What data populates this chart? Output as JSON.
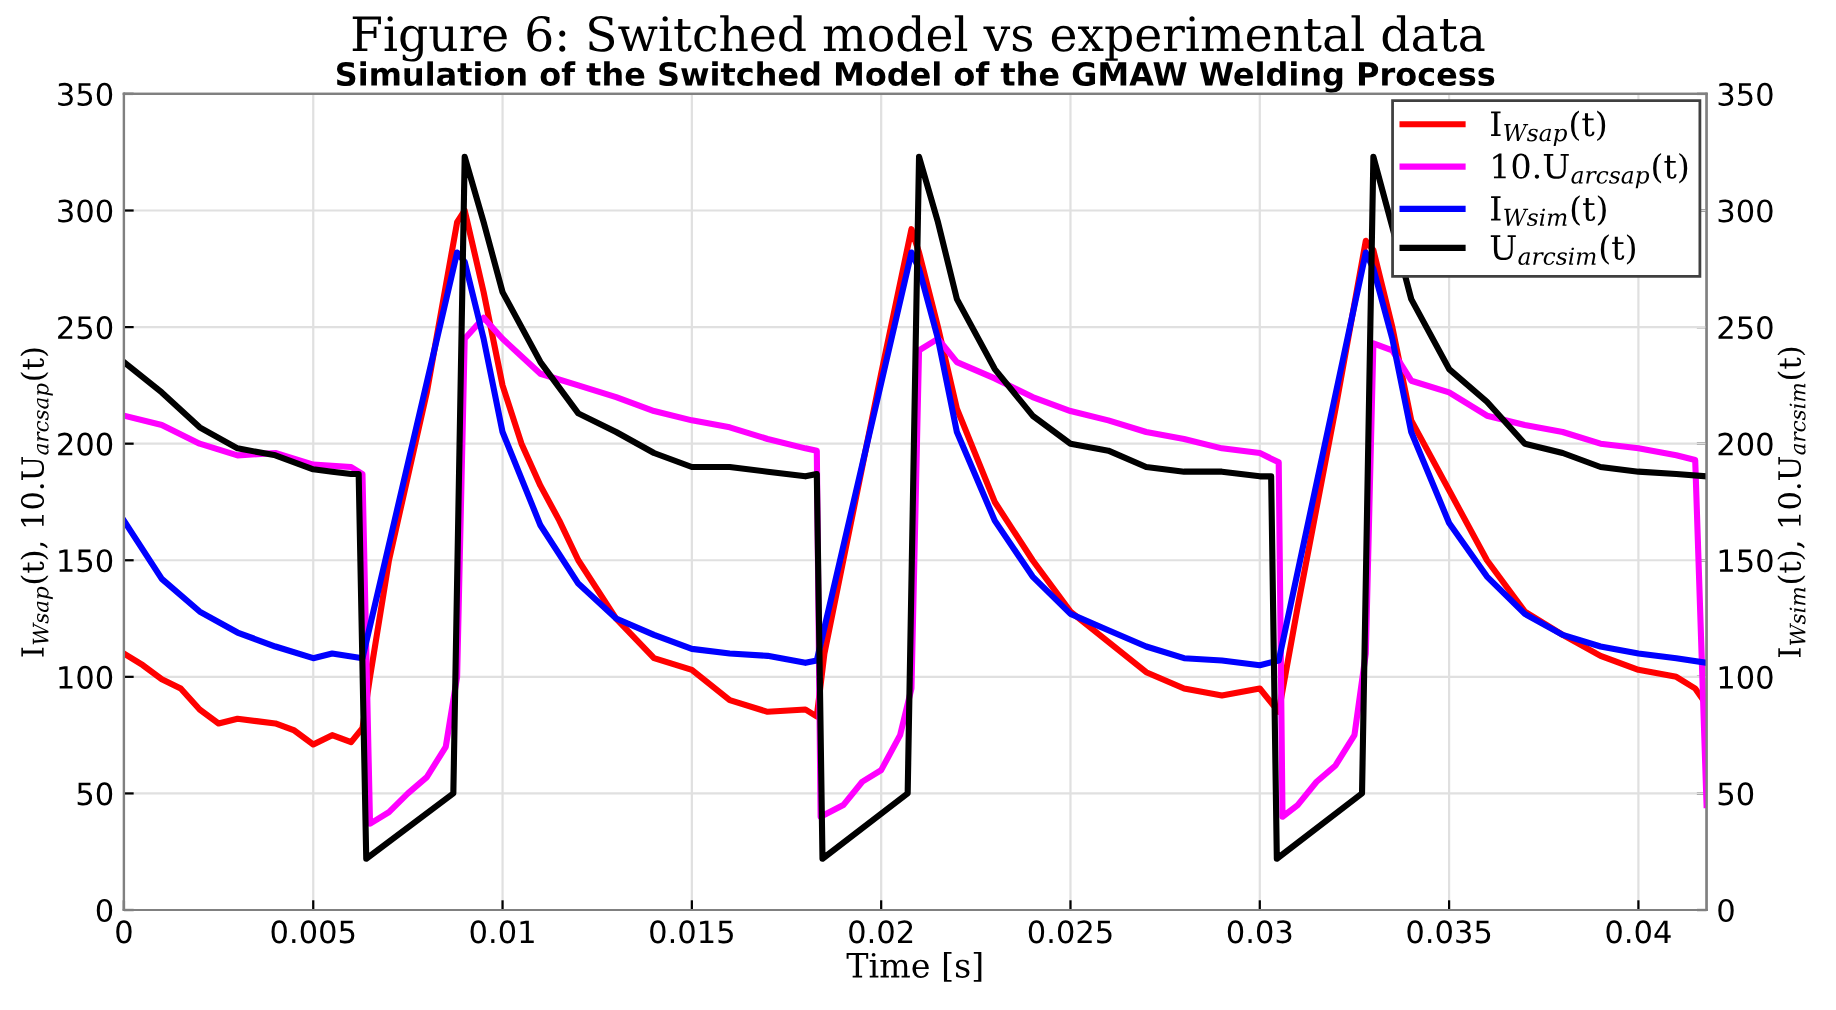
{
  "chart_data": {
    "type": "line",
    "title": "Figure 6: Switched model vs experimental data",
    "subtitle": "Simulation of the Switched Model of the GMAW Welding Process",
    "xlabel": "Time [s]",
    "ylabel": "I$_{Wsap}$(t), 10.U$_{arcsap}$(t)",
    "y2label": "I$_{Wsim}$(t), 10.U$_{arcsim}$(t)",
    "xlim": [
      0,
      0.0418
    ],
    "xticks": [
      0,
      0.005,
      0.01,
      0.015,
      0.02,
      0.025,
      0.03,
      0.035,
      0.04
    ],
    "ylim": [
      0,
      350
    ],
    "yticks": [
      0,
      50,
      100,
      150,
      200,
      250,
      300,
      350
    ],
    "y2lim": [
      0,
      350
    ],
    "y2ticks": [
      0,
      50,
      100,
      150,
      200,
      250,
      300,
      350
    ],
    "grid": true,
    "legend": "top right",
    "line_style": "solid",
    "marker": "none",
    "series": [
      {
        "name": "I$_{Wsap}$(t)",
        "color": "#ff0000",
        "x": [
          0,
          0.0005,
          0.001,
          0.0015,
          0.002,
          0.0025,
          0.003,
          0.0035,
          0.004,
          0.0045,
          0.005,
          0.0055,
          0.006,
          0.0063,
          0.0065,
          0.007,
          0.008,
          0.0088,
          0.009,
          0.0095,
          0.01,
          0.0105,
          0.011,
          0.0115,
          0.012,
          0.013,
          0.014,
          0.015,
          0.016,
          0.017,
          0.018,
          0.0183,
          0.0185,
          0.019,
          0.02,
          0.0208,
          0.021,
          0.0215,
          0.022,
          0.023,
          0.024,
          0.025,
          0.026,
          0.027,
          0.028,
          0.029,
          0.03,
          0.0305,
          0.031,
          0.032,
          0.0328,
          0.033,
          0.0335,
          0.034,
          0.035,
          0.036,
          0.037,
          0.038,
          0.039,
          0.04,
          0.041,
          0.0415,
          0.0418
        ],
        "values": [
          110,
          105,
          99,
          95,
          86,
          80,
          82,
          81,
          80,
          77,
          71,
          75,
          72,
          78,
          100,
          150,
          222,
          295,
          300,
          265,
          225,
          200,
          182,
          167,
          150,
          125,
          108,
          103,
          90,
          85,
          86,
          83,
          110,
          150,
          230,
          292,
          282,
          250,
          215,
          175,
          150,
          128,
          115,
          102,
          95,
          92,
          95,
          85,
          130,
          215,
          287,
          283,
          250,
          210,
          180,
          150,
          128,
          118,
          109,
          103,
          100,
          95,
          88
        ]
      },
      {
        "name": "10.U$_{arcsap}$(t)",
        "color": "#ff00ff",
        "x": [
          0,
          0.001,
          0.002,
          0.003,
          0.004,
          0.005,
          0.006,
          0.0063,
          0.0065,
          0.007,
          0.0075,
          0.008,
          0.0085,
          0.0088,
          0.009,
          0.0095,
          0.01,
          0.011,
          0.012,
          0.013,
          0.014,
          0.015,
          0.016,
          0.017,
          0.018,
          0.0183,
          0.0184,
          0.019,
          0.0195,
          0.02,
          0.0205,
          0.0208,
          0.021,
          0.0215,
          0.022,
          0.023,
          0.024,
          0.025,
          0.026,
          0.027,
          0.028,
          0.029,
          0.03,
          0.0305,
          0.0306,
          0.031,
          0.0315,
          0.032,
          0.0325,
          0.0328,
          0.033,
          0.0335,
          0.034,
          0.035,
          0.036,
          0.037,
          0.038,
          0.039,
          0.04,
          0.041,
          0.0415,
          0.0418
        ],
        "values": [
          212,
          208,
          200,
          195,
          196,
          191,
          190,
          187,
          37,
          42,
          50,
          57,
          70,
          100,
          245,
          254,
          245,
          230,
          225,
          220,
          214,
          210,
          207,
          202,
          198,
          197,
          40,
          45,
          55,
          60,
          75,
          95,
          240,
          245,
          235,
          228,
          220,
          214,
          210,
          205,
          202,
          198,
          196,
          192,
          40,
          45,
          55,
          62,
          75,
          110,
          243,
          240,
          227,
          222,
          212,
          208,
          205,
          200,
          198,
          195,
          193,
          45
        ]
      },
      {
        "name": "I$_{Wsim}$(t)",
        "color": "#0000ff",
        "x": [
          0,
          0.001,
          0.002,
          0.003,
          0.004,
          0.005,
          0.0055,
          0.0063,
          0.0088,
          0.009,
          0.0095,
          0.01,
          0.011,
          0.012,
          0.013,
          0.014,
          0.015,
          0.016,
          0.017,
          0.018,
          0.0183,
          0.0208,
          0.021,
          0.0215,
          0.022,
          0.023,
          0.024,
          0.025,
          0.026,
          0.027,
          0.028,
          0.029,
          0.03,
          0.0305,
          0.0328,
          0.033,
          0.0335,
          0.034,
          0.035,
          0.036,
          0.037,
          0.038,
          0.039,
          0.04,
          0.041,
          0.0418
        ],
        "values": [
          167,
          142,
          128,
          119,
          113,
          108,
          110,
          108,
          282,
          278,
          245,
          205,
          165,
          140,
          125,
          118,
          112,
          110,
          109,
          106,
          107,
          282,
          275,
          245,
          205,
          167,
          143,
          127,
          120,
          113,
          108,
          107,
          105,
          107,
          282,
          275,
          245,
          205,
          166,
          143,
          127,
          118,
          113,
          110,
          108,
          106
        ]
      },
      {
        "name": "U$_{arcsim}$(t)",
        "color": "#000000",
        "x": [
          0,
          0.001,
          0.002,
          0.003,
          0.004,
          0.005,
          0.0055,
          0.006,
          0.0062,
          0.0064,
          0.0087,
          0.009,
          0.0095,
          0.01,
          0.011,
          0.012,
          0.013,
          0.014,
          0.015,
          0.016,
          0.017,
          0.018,
          0.0183,
          0.01845,
          0.0207,
          0.021,
          0.0215,
          0.022,
          0.023,
          0.024,
          0.025,
          0.026,
          0.027,
          0.028,
          0.029,
          0.03,
          0.0303,
          0.03045,
          0.0327,
          0.033,
          0.0335,
          0.034,
          0.035,
          0.036,
          0.037,
          0.038,
          0.039,
          0.04,
          0.041,
          0.0418
        ],
        "values": [
          235,
          222,
          207,
          198,
          195,
          189,
          188,
          187,
          187,
          22,
          50,
          323,
          295,
          265,
          235,
          213,
          205,
          196,
          190,
          190,
          188,
          186,
          187,
          22,
          50,
          323,
          295,
          262,
          232,
          212,
          200,
          197,
          190,
          188,
          188,
          186,
          186,
          22,
          50,
          323,
          293,
          262,
          232,
          218,
          200,
          196,
          190,
          188,
          187,
          186
        ]
      }
    ]
  }
}
